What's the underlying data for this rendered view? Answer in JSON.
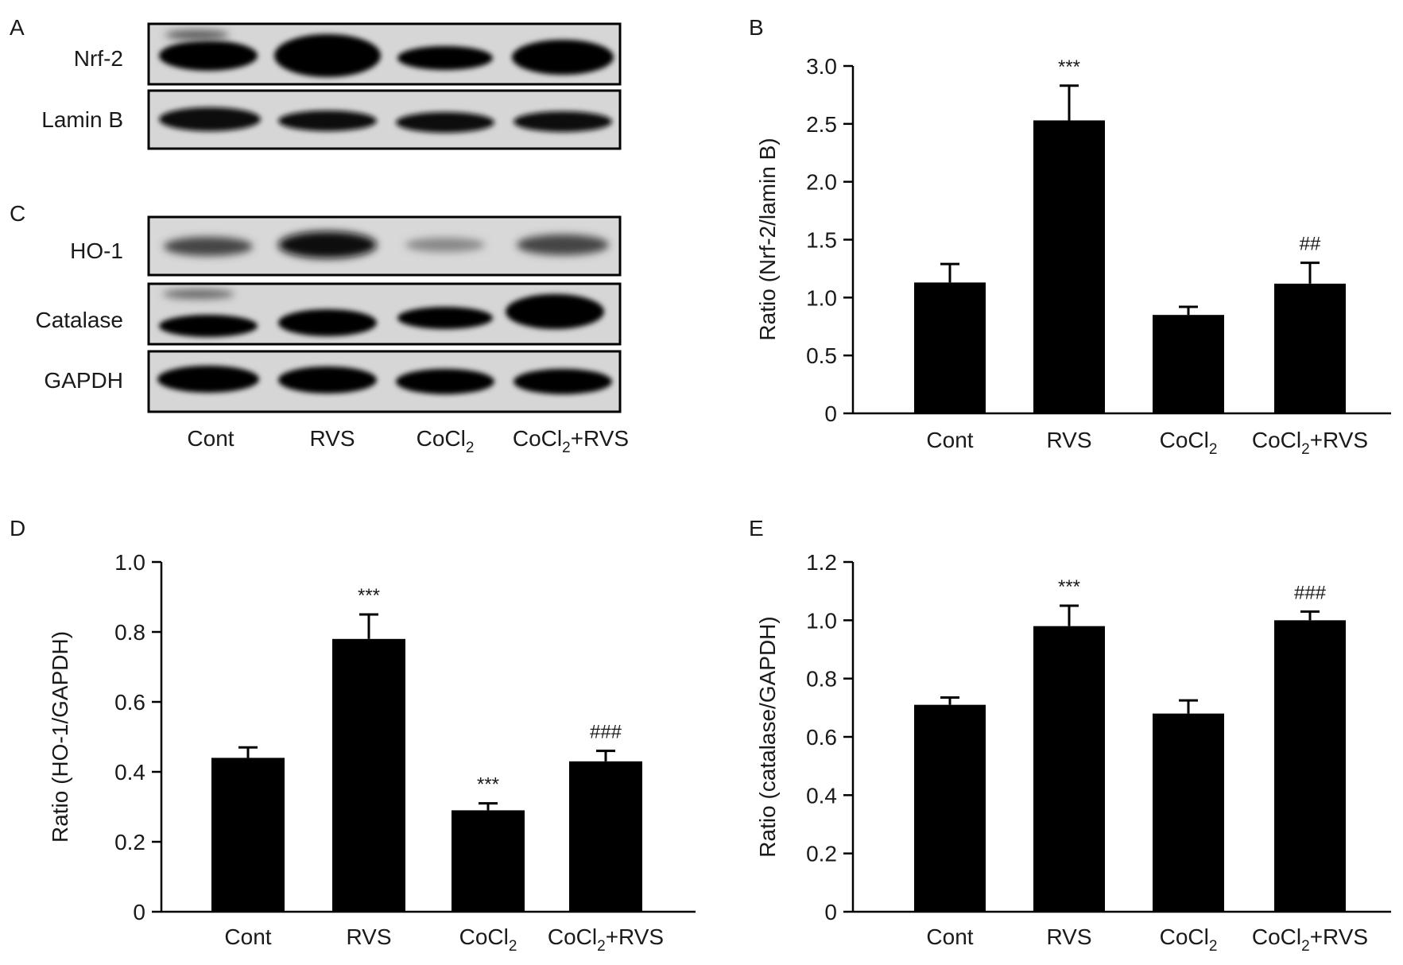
{
  "panel_labels": [
    "A",
    "B",
    "C",
    "D",
    "E"
  ],
  "blot_A": {
    "rows": [
      "Nrf-2",
      "Lamin B"
    ],
    "lanes": [
      {
        "base": "Cont",
        "sub": "",
        "suffix": ""
      },
      {
        "base": "RVS",
        "sub": "",
        "suffix": ""
      },
      {
        "base": "CoCl",
        "sub": "2",
        "suffix": ""
      },
      {
        "base": "CoCl",
        "sub": "2",
        "suffix": "+RVS"
      }
    ]
  },
  "blot_C": {
    "rows": [
      "HO-1",
      "Catalase",
      "GAPDH"
    ],
    "lanes": [
      {
        "base": "Cont",
        "sub": "",
        "suffix": ""
      },
      {
        "base": "RVS",
        "sub": "",
        "suffix": ""
      },
      {
        "base": "CoCl",
        "sub": "2",
        "suffix": ""
      },
      {
        "base": "CoCl",
        "sub": "2",
        "suffix": "+RVS"
      }
    ]
  },
  "colors": {
    "bar": "#000000",
    "axis": "#000000",
    "text": "#1a1a1a",
    "blot_bg": "#d8d8d8"
  },
  "chart_data": [
    {
      "panel": "B",
      "type": "bar",
      "categories": [
        {
          "base": "Cont",
          "sub": "",
          "suffix": ""
        },
        {
          "base": "RVS",
          "sub": "",
          "suffix": ""
        },
        {
          "base": "CoCl",
          "sub": "2",
          "suffix": ""
        },
        {
          "base": "CoCl",
          "sub": "2",
          "suffix": "+RVS"
        }
      ],
      "values": [
        1.13,
        2.53,
        0.85,
        1.12
      ],
      "errors": [
        0.16,
        0.3,
        0.07,
        0.18
      ],
      "annotations": [
        "",
        "***",
        "",
        "##"
      ],
      "ylabel": "Ratio (Nrf-2/lamin B)",
      "ylim": [
        0,
        3.0
      ],
      "yticks": [
        "0",
        "0.5",
        "1.0",
        "1.5",
        "2.0",
        "2.5",
        "3.0"
      ],
      "ytick_values": [
        0,
        0.5,
        1.0,
        1.5,
        2.0,
        2.5,
        3.0
      ],
      "grid": false
    },
    {
      "panel": "D",
      "type": "bar",
      "categories": [
        {
          "base": "Cont",
          "sub": "",
          "suffix": ""
        },
        {
          "base": "RVS",
          "sub": "",
          "suffix": ""
        },
        {
          "base": "CoCl",
          "sub": "2",
          "suffix": ""
        },
        {
          "base": "CoCl",
          "sub": "2",
          "suffix": "+RVS"
        }
      ],
      "values": [
        0.44,
        0.78,
        0.29,
        0.43
      ],
      "errors": [
        0.03,
        0.07,
        0.02,
        0.03
      ],
      "annotations": [
        "",
        "***",
        "***",
        "###"
      ],
      "ylabel": "Ratio (HO-1/GAPDH)",
      "ylim": [
        0,
        1.0
      ],
      "yticks": [
        "0",
        "0.2",
        "0.4",
        "0.6",
        "0.8",
        "1.0"
      ],
      "ytick_values": [
        0,
        0.2,
        0.4,
        0.6,
        0.8,
        1.0
      ],
      "grid": false
    },
    {
      "panel": "E",
      "type": "bar",
      "categories": [
        {
          "base": "Cont",
          "sub": "",
          "suffix": ""
        },
        {
          "base": "RVS",
          "sub": "",
          "suffix": ""
        },
        {
          "base": "CoCl",
          "sub": "2",
          "suffix": ""
        },
        {
          "base": "CoCl",
          "sub": "2",
          "suffix": "+RVS"
        }
      ],
      "values": [
        0.71,
        0.98,
        0.68,
        1.0
      ],
      "errors": [
        0.025,
        0.07,
        0.045,
        0.03
      ],
      "annotations": [
        "",
        "***",
        "",
        "###"
      ],
      "ylabel": "Ratio (catalase/GAPDH)",
      "ylim": [
        0,
        1.2
      ],
      "yticks": [
        "0",
        "0.2",
        "0.4",
        "0.6",
        "0.8",
        "1.0",
        "1.2"
      ],
      "ytick_values": [
        0,
        0.2,
        0.4,
        0.6,
        0.8,
        1.0,
        1.2
      ],
      "grid": false
    }
  ]
}
